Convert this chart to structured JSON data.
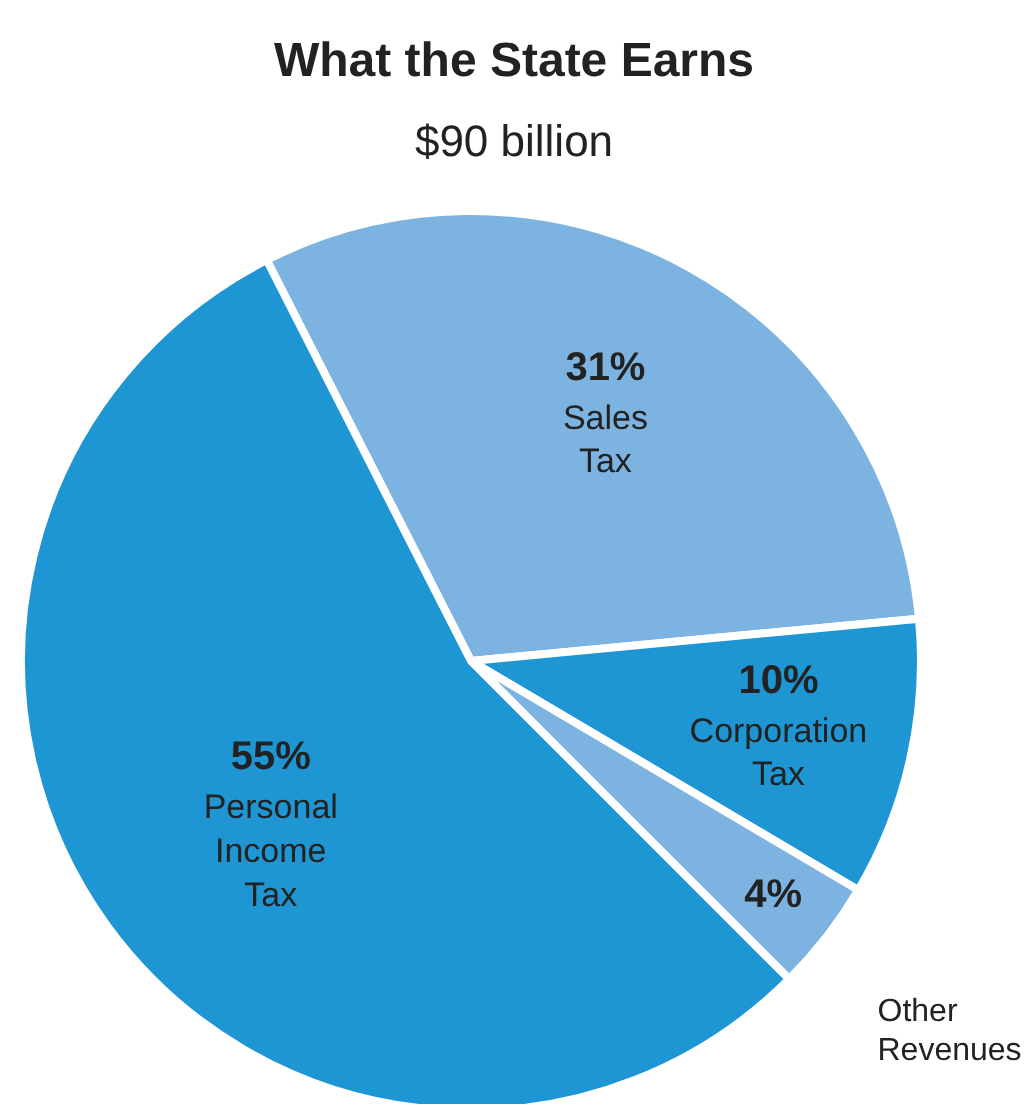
{
  "chart_data": {
    "type": "pie",
    "title": "What the State Earns",
    "subtitle": "$90 billion",
    "categories": [
      "Sales Tax",
      "Corporation Tax",
      "Other Revenues",
      "Personal Income Tax"
    ],
    "values": [
      31,
      10,
      4,
      55
    ],
    "value_labels": [
      "31%",
      "10%",
      "4%",
      "55%"
    ],
    "colors": [
      "#7db3e0",
      "#1e96d4",
      "#7db3e0",
      "#1e96d4"
    ],
    "legend": false
  }
}
